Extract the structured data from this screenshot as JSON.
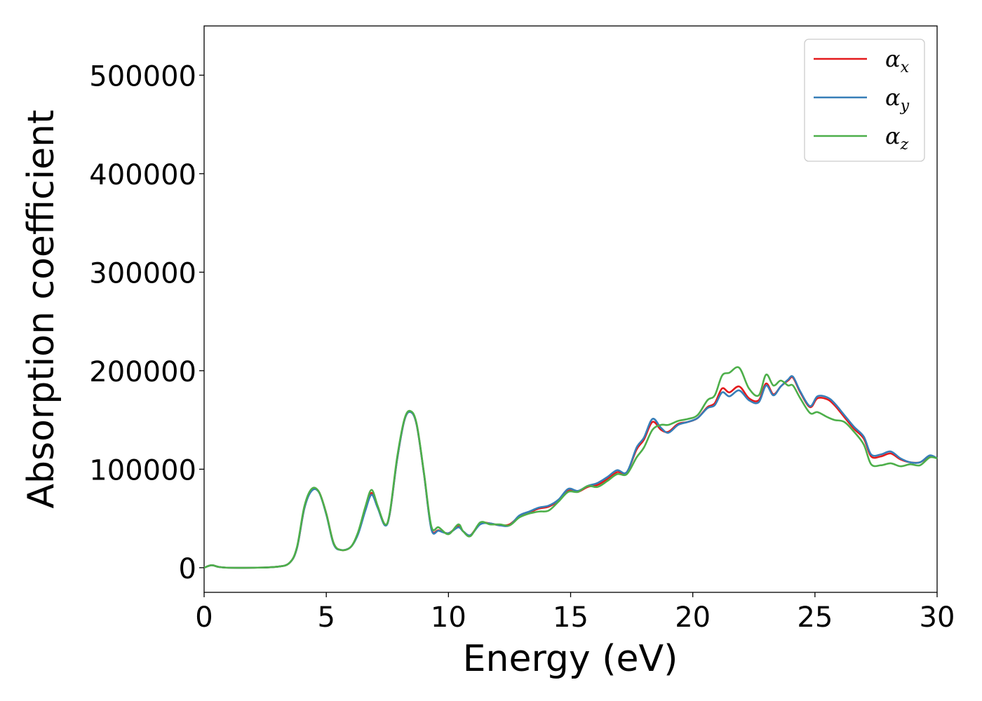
{
  "chart_data": {
    "type": "line",
    "title": "",
    "xlabel": "Energy (eV)",
    "ylabel": "Absorption coefficient",
    "xlim": [
      0,
      30
    ],
    "ylim": [
      -25000,
      550000
    ],
    "xticks": [
      0,
      5,
      10,
      15,
      20,
      25,
      30
    ],
    "yticks": [
      0,
      100000,
      200000,
      300000,
      400000,
      500000
    ],
    "xtick_labels": [
      "0",
      "5",
      "10",
      "15",
      "20",
      "25",
      "30"
    ],
    "ytick_labels": [
      "0",
      "100000",
      "200000",
      "300000",
      "400000",
      "500000"
    ],
    "grid": false,
    "legend_position": "top-right",
    "series": [
      {
        "name": "α",
        "subscript": "x",
        "color": "#e41a1c",
        "x": [
          0,
          0.3,
          0.6,
          1,
          2,
          3,
          3.5,
          3.8,
          4.1,
          4.4,
          4.7,
          5.0,
          5.3,
          5.6,
          6.0,
          6.3,
          6.6,
          6.85,
          7.1,
          7.4,
          7.6,
          7.9,
          8.2,
          8.45,
          8.7,
          9.0,
          9.3,
          9.6,
          10.0,
          10.4,
          10.6,
          10.9,
          11.3,
          11.7,
          12.1,
          12.5,
          12.9,
          13.3,
          13.7,
          14.1,
          14.5,
          14.9,
          15.3,
          15.7,
          16.1,
          16.5,
          16.9,
          17.3,
          17.7,
          18.0,
          18.35,
          18.7,
          19.0,
          19.4,
          19.8,
          20.2,
          20.6,
          20.9,
          21.2,
          21.5,
          21.9,
          22.3,
          22.7,
          23.0,
          23.3,
          23.6,
          23.9,
          24.1,
          24.4,
          24.8,
          25.1,
          25.5,
          25.8,
          26.2,
          26.6,
          27.0,
          27.3,
          27.7,
          28.1,
          28.5,
          28.9,
          29.3,
          29.7,
          30.0
        ],
        "y": [
          0,
          2500,
          800,
          0,
          0,
          1000,
          5000,
          20000,
          60000,
          79000,
          77000,
          55000,
          25000,
          18000,
          21000,
          35000,
          60000,
          76000,
          62000,
          44000,
          55000,
          110000,
          150000,
          158000,
          145000,
          95000,
          40000,
          38000,
          35000,
          42000,
          37000,
          33000,
          45000,
          45000,
          43000,
          44000,
          52000,
          56000,
          60000,
          62000,
          68000,
          78000,
          77000,
          82000,
          84000,
          90000,
          97000,
          97000,
          120000,
          130000,
          148000,
          140000,
          138000,
          146000,
          148000,
          152000,
          163000,
          167000,
          182000,
          178000,
          184000,
          172000,
          170000,
          187000,
          176000,
          184000,
          190000,
          193000,
          178000,
          163000,
          172000,
          171000,
          165000,
          153000,
          141000,
          131000,
          113000,
          113000,
          116000,
          110000,
          107000,
          107000,
          113000,
          111000
        ]
      },
      {
        "name": "α",
        "subscript": "y",
        "color": "#377eb8",
        "x": [
          0,
          0.3,
          0.6,
          1,
          2,
          3,
          3.5,
          3.8,
          4.1,
          4.4,
          4.7,
          5.0,
          5.3,
          5.6,
          6.0,
          6.3,
          6.6,
          6.85,
          7.1,
          7.4,
          7.6,
          7.9,
          8.2,
          8.45,
          8.7,
          9.0,
          9.3,
          9.6,
          10.0,
          10.4,
          10.6,
          10.9,
          11.3,
          11.7,
          12.1,
          12.5,
          12.9,
          13.3,
          13.7,
          14.1,
          14.5,
          14.9,
          15.3,
          15.7,
          16.1,
          16.5,
          16.9,
          17.3,
          17.7,
          18.0,
          18.35,
          18.7,
          19.0,
          19.4,
          19.8,
          20.2,
          20.6,
          20.9,
          21.2,
          21.5,
          21.9,
          22.3,
          22.7,
          23.0,
          23.3,
          23.6,
          23.9,
          24.1,
          24.4,
          24.8,
          25.1,
          25.5,
          25.8,
          26.2,
          26.6,
          27.0,
          27.3,
          27.7,
          28.1,
          28.5,
          28.9,
          29.3,
          29.7,
          30.0
        ],
        "y": [
          0,
          2500,
          800,
          0,
          0,
          1000,
          5000,
          20000,
          60000,
          78000,
          76500,
          54000,
          24000,
          18000,
          21000,
          34000,
          58000,
          74000,
          61000,
          43000,
          55000,
          110000,
          150000,
          158000,
          145000,
          95000,
          39000,
          37500,
          35000,
          41000,
          37000,
          33000,
          44000,
          45000,
          43000,
          43000,
          53000,
          57000,
          61000,
          63000,
          69000,
          80000,
          78000,
          83000,
          86000,
          92000,
          99000,
          97000,
          122000,
          132000,
          151000,
          142000,
          137000,
          145000,
          148000,
          152000,
          162000,
          165000,
          178000,
          174000,
          180000,
          170000,
          168000,
          185000,
          175000,
          184000,
          191000,
          194000,
          179000,
          164000,
          174000,
          173000,
          167000,
          155000,
          143000,
          133000,
          115000,
          115000,
          118000,
          111000,
          107000,
          107000,
          114000,
          111000
        ]
      },
      {
        "name": "α",
        "subscript": "z",
        "color": "#4daf4a",
        "x": [
          0,
          0.3,
          0.6,
          1,
          2,
          3,
          3.5,
          3.8,
          4.1,
          4.4,
          4.7,
          5.0,
          5.3,
          5.6,
          6.0,
          6.3,
          6.6,
          6.85,
          7.1,
          7.4,
          7.6,
          7.9,
          8.2,
          8.45,
          8.7,
          9.0,
          9.3,
          9.6,
          10.0,
          10.4,
          10.6,
          10.9,
          11.3,
          11.7,
          12.1,
          12.5,
          12.9,
          13.3,
          13.7,
          14.1,
          14.5,
          14.9,
          15.3,
          15.7,
          16.1,
          16.5,
          16.9,
          17.3,
          17.7,
          18.0,
          18.35,
          18.7,
          19.0,
          19.4,
          19.8,
          20.2,
          20.6,
          20.9,
          21.2,
          21.5,
          21.9,
          22.3,
          22.7,
          23.0,
          23.3,
          23.6,
          23.9,
          24.1,
          24.4,
          24.8,
          25.1,
          25.5,
          25.8,
          26.2,
          26.6,
          27.0,
          27.3,
          27.7,
          28.1,
          28.5,
          28.9,
          29.3,
          29.7,
          30.0
        ],
        "y": [
          0,
          2500,
          800,
          0,
          0,
          1000,
          5000,
          21000,
          62000,
          80000,
          77000,
          55000,
          25000,
          18000,
          21000,
          36000,
          62000,
          79000,
          63000,
          44000,
          56000,
          112000,
          151000,
          159000,
          146000,
          96000,
          42000,
          41000,
          34000,
          44000,
          37000,
          32000,
          46000,
          44000,
          44000,
          43000,
          51000,
          55000,
          57000,
          58000,
          67000,
          77000,
          77000,
          83000,
          82000,
          88000,
          95000,
          95000,
          112000,
          122000,
          140000,
          145000,
          145000,
          149000,
          151000,
          155000,
          170000,
          175000,
          195000,
          198000,
          203000,
          182000,
          175000,
          196000,
          185000,
          190000,
          185000,
          185000,
          172000,
          157000,
          158000,
          153000,
          150000,
          148000,
          138000,
          125000,
          105000,
          104000,
          106000,
          103000,
          105000,
          104000,
          112000,
          111000
        ]
      }
    ]
  }
}
